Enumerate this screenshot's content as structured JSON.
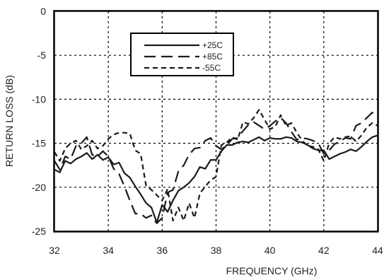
{
  "chart_data": {
    "type": "line",
    "xlabel": "FREQUENCY (GHz)",
    "ylabel": "RETURN LOSS (dB)",
    "xlim": [
      32,
      44
    ],
    "ylim": [
      -25,
      0
    ],
    "x_ticks": [
      32,
      34,
      36,
      38,
      40,
      42,
      44
    ],
    "y_ticks": [
      0,
      -5,
      -10,
      -15,
      -20,
      -25
    ],
    "grid": true,
    "legend_position": "top-center",
    "series": [
      {
        "name": "+25C",
        "style": "solid",
        "x": [
          32,
          32.2,
          32.4,
          32.6,
          32.8,
          33.0,
          33.2,
          33.4,
          33.6,
          33.8,
          34.0,
          34.2,
          34.4,
          34.6,
          34.8,
          35.0,
          35.2,
          35.4,
          35.6,
          35.8,
          36.0,
          36.2,
          36.4,
          36.6,
          36.8,
          37.0,
          37.2,
          37.4,
          37.6,
          37.8,
          38.0,
          38.2,
          38.4,
          38.6,
          38.8,
          39.0,
          39.2,
          39.4,
          39.6,
          39.8,
          40.0,
          40.2,
          40.4,
          40.6,
          40.8,
          41.0,
          41.2,
          41.4,
          41.6,
          41.8,
          42.0,
          42.2,
          42.4,
          42.6,
          42.8,
          43.0,
          43.2,
          43.4,
          43.6,
          43.8,
          44.0
        ],
        "y": [
          -18.0,
          -18.3,
          -17.0,
          -17.3,
          -16.8,
          -16.5,
          -16.1,
          -16.8,
          -16.3,
          -16.9,
          -16.6,
          -17.4,
          -17.2,
          -18.4,
          -18.9,
          -19.9,
          -20.8,
          -21.8,
          -22.3,
          -24.0,
          -22.0,
          -22.8,
          -21.5,
          -20.4,
          -20.0,
          -19.5,
          -18.8,
          -17.7,
          -17.9,
          -16.9,
          -16.9,
          -15.9,
          -15.2,
          -15.2,
          -14.9,
          -14.8,
          -14.9,
          -14.6,
          -14.3,
          -14.7,
          -14.4,
          -14.5,
          -14.5,
          -14.3,
          -14.4,
          -14.8,
          -14.9,
          -15.2,
          -15.6,
          -15.8,
          -15.8,
          -16.8,
          -16.5,
          -16.2,
          -16.0,
          -15.7,
          -15.9,
          -15.4,
          -14.8,
          -14.3,
          -14.1
        ]
      },
      {
        "name": "+85C",
        "style": "long-dash",
        "x": [
          32,
          32.2,
          32.4,
          32.6,
          32.8,
          33.0,
          33.2,
          33.4,
          33.6,
          33.8,
          34.0,
          34.2,
          34.4,
          34.6,
          34.8,
          35.0,
          35.2,
          35.4,
          35.6,
          35.8,
          36.0,
          36.2,
          36.4,
          36.6,
          36.8,
          37.0,
          37.2,
          37.4,
          37.6,
          37.8,
          38.0,
          38.2,
          38.4,
          38.6,
          38.8,
          39.0,
          39.2,
          39.4,
          39.6,
          39.8,
          40.0,
          40.2,
          40.4,
          40.6,
          40.8,
          41.0,
          41.2,
          41.4,
          41.6,
          41.8,
          42.0,
          42.2,
          42.4,
          42.6,
          42.8,
          43.0,
          43.2,
          43.4,
          43.6,
          43.8,
          44.0
        ],
        "y": [
          -17.0,
          -18.0,
          -16.5,
          -16.8,
          -15.3,
          -15.0,
          -14.3,
          -16.3,
          -16.5,
          -15.9,
          -16.5,
          -17.9,
          -18.5,
          -19.9,
          -21.5,
          -23.0,
          -23.0,
          -23.5,
          -23.2,
          -24.1,
          -23.5,
          -20.6,
          -20.3,
          -18.2,
          -17.5,
          -16.3,
          -15.6,
          -15.5,
          -14.7,
          -14.4,
          -15.3,
          -15.7,
          -15.2,
          -14.5,
          -14.4,
          -13.6,
          -12.9,
          -12.6,
          -13.0,
          -13.4,
          -13.0,
          -12.5,
          -12.1,
          -12.7,
          -13.7,
          -14.6,
          -14.4,
          -14.5,
          -14.7,
          -15.0,
          -16.2,
          -15.8,
          -15.1,
          -14.8,
          -14.4,
          -14.5,
          -13.0,
          -12.7,
          -12.1,
          -11.5,
          -12.0
        ]
      },
      {
        "name": "-55C",
        "style": "short-dash",
        "x": [
          32,
          32.2,
          32.4,
          32.6,
          32.8,
          33.0,
          33.2,
          33.4,
          33.6,
          33.8,
          34.0,
          34.2,
          34.4,
          34.6,
          34.8,
          35.0,
          35.2,
          35.4,
          35.6,
          35.8,
          36.0,
          36.2,
          36.4,
          36.6,
          36.8,
          37.0,
          37.2,
          37.4,
          37.6,
          37.8,
          38.0,
          38.2,
          38.4,
          38.6,
          38.8,
          39.0,
          39.2,
          39.4,
          39.6,
          39.8,
          40.0,
          40.2,
          40.4,
          40.6,
          40.8,
          41.0,
          41.2,
          41.4,
          41.6,
          41.8,
          42.0,
          42.2,
          42.4,
          42.6,
          42.8,
          43.0,
          43.2,
          43.4,
          43.6,
          43.8,
          44.0
        ],
        "y": [
          -16.0,
          -17.0,
          -15.6,
          -15.0,
          -14.7,
          -15.7,
          -15.3,
          -14.7,
          -15.6,
          -15.3,
          -14.5,
          -14.0,
          -13.8,
          -13.8,
          -13.9,
          -15.8,
          -16.2,
          -19.8,
          -20.3,
          -20.9,
          -21.5,
          -20.2,
          -23.8,
          -22.3,
          -23.8,
          -21.8,
          -23.5,
          -20.7,
          -19.9,
          -19.2,
          -18.8,
          -15.2,
          -14.9,
          -14.3,
          -14.6,
          -12.6,
          -12.8,
          -12.1,
          -11.2,
          -12.3,
          -13.4,
          -13.1,
          -11.8,
          -13.0,
          -12.7,
          -13.8,
          -14.7,
          -15.3,
          -15.4,
          -15.7,
          -17.0,
          -15.0,
          -14.3,
          -14.5,
          -14.3,
          -14.2,
          -14.8,
          -14.1,
          -13.2,
          -12.7,
          -13.0
        ]
      }
    ]
  }
}
